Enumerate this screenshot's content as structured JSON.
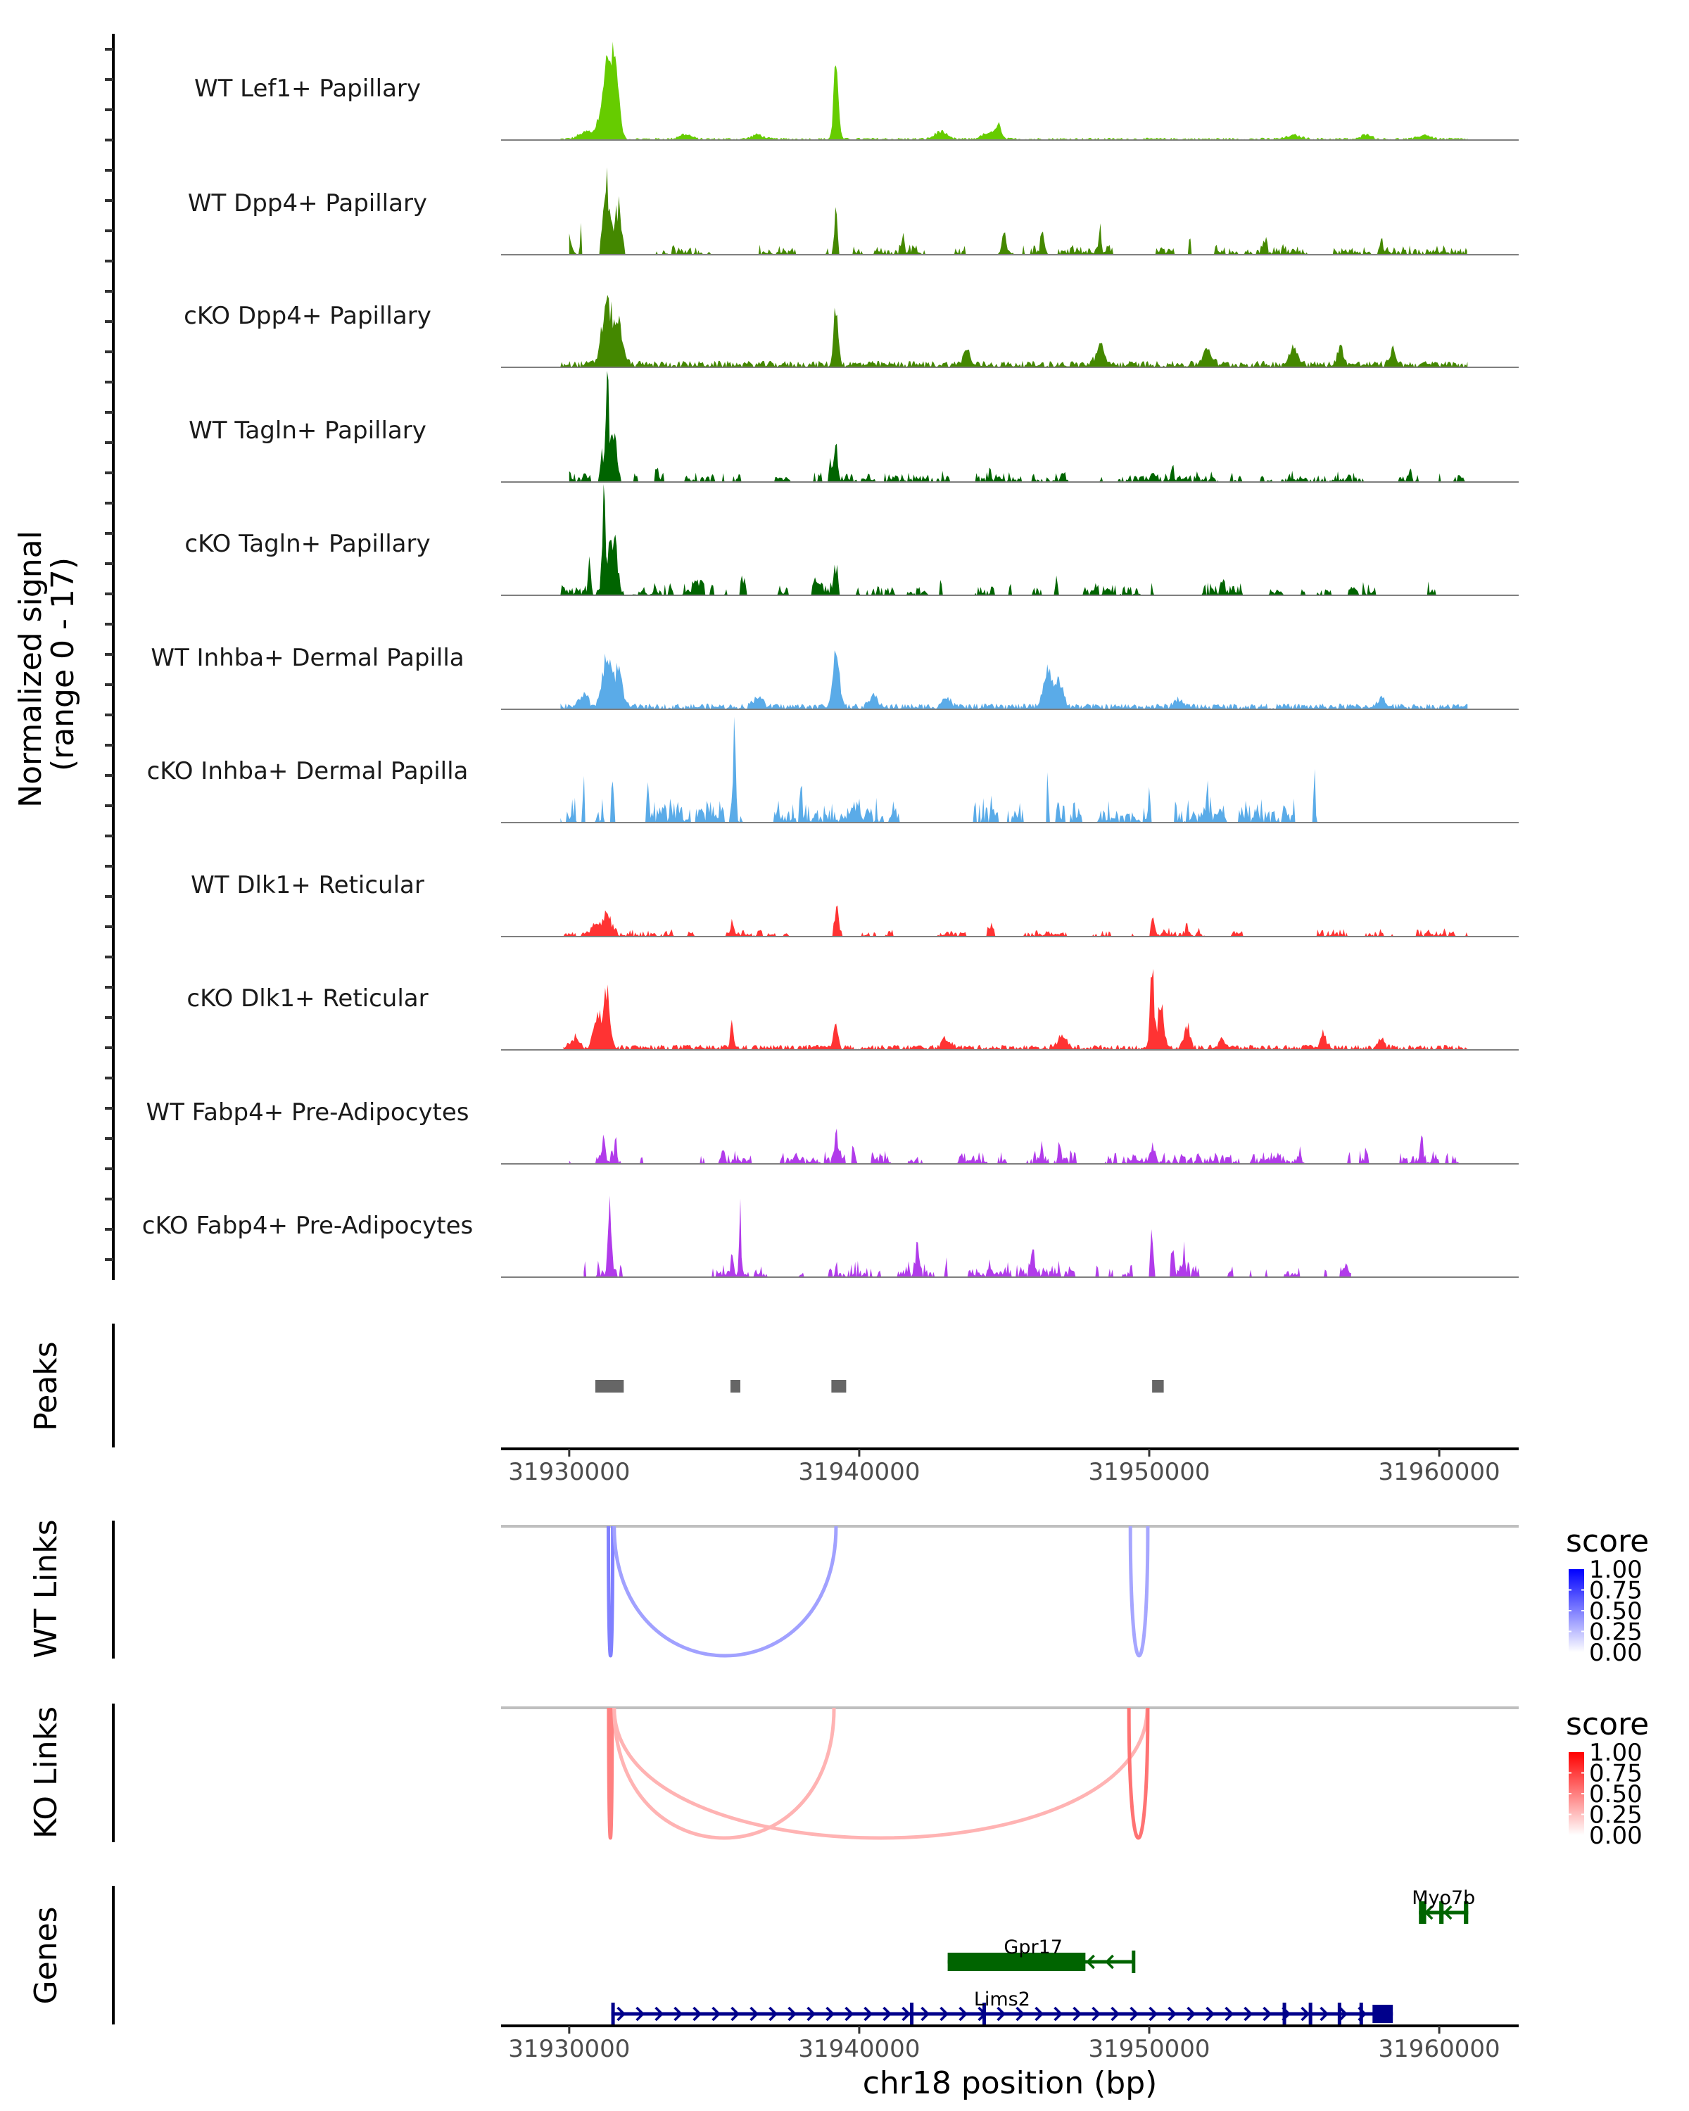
{
  "chart_data": {
    "type": "area",
    "title": "",
    "region": {
      "chrom": "chr18",
      "start": 31927650,
      "end": 31962740
    },
    "xlabel": "chr18 position (bp)",
    "ylabel": "Normalized signal\n(range 0 - 17)",
    "ylabel_lines": [
      "Normalized signal",
      "(range 0 - 17)"
    ],
    "ylim": [
      0,
      17
    ],
    "x_ticks": [
      31930000,
      31940000,
      31950000,
      31960000
    ],
    "x_tick_labels": [
      "31930000",
      "31940000",
      "31950000",
      "31960000"
    ],
    "coverage_tracks": [
      {
        "name": "WT Lef1+ Papillary",
        "color": "#66cc00",
        "style": "continuous",
        "noise": 0.35,
        "span": [
          31929700,
          31961000
        ],
        "peaks": [
          [
            31931300,
            11.5,
            380
          ],
          [
            31931600,
            9.0,
            250
          ],
          [
            31930600,
            1.2,
            500
          ],
          [
            31939200,
            12.0,
            160
          ],
          [
            31934000,
            0.8,
            400
          ],
          [
            31936500,
            0.7,
            400
          ],
          [
            31942800,
            1.2,
            400
          ],
          [
            31944800,
            2.5,
            150
          ],
          [
            31944500,
            1.0,
            500
          ],
          [
            31955000,
            0.6,
            500
          ],
          [
            31957500,
            0.9,
            300
          ],
          [
            31959500,
            0.7,
            400
          ]
        ]
      },
      {
        "name": "WT Dpp4+ Papillary",
        "color": "#448800",
        "style": "sparse",
        "noise": 0.9,
        "span": [
          31930000,
          31961000
        ],
        "peaks": [
          [
            31931300,
            13.0,
            250
          ],
          [
            31931700,
            9.5,
            200
          ],
          [
            31930400,
            5.0,
            60
          ],
          [
            31930000,
            3.0,
            80
          ],
          [
            31939200,
            9.0,
            120
          ],
          [
            31941500,
            2.8,
            100
          ],
          [
            31945000,
            3.5,
            100
          ],
          [
            31946300,
            3.0,
            100
          ],
          [
            31948300,
            3.4,
            100
          ],
          [
            31951400,
            2.4,
            100
          ],
          [
            31954000,
            2.3,
            100
          ],
          [
            31958000,
            1.6,
            100
          ]
        ]
      },
      {
        "name": "cKO Dpp4+ Papillary",
        "color": "#448800",
        "style": "continuous",
        "noise": 1.0,
        "span": [
          31929700,
          31961000
        ],
        "peaks": [
          [
            31931300,
            9.5,
            350
          ],
          [
            31931700,
            6.0,
            300
          ],
          [
            31939200,
            9.0,
            150
          ],
          [
            31943700,
            2.6,
            200
          ],
          [
            31948300,
            2.8,
            300
          ],
          [
            31952000,
            2.4,
            300
          ],
          [
            31955000,
            2.8,
            300
          ],
          [
            31956600,
            3.2,
            200
          ],
          [
            31958400,
            2.6,
            200
          ]
        ]
      },
      {
        "name": "WT Tagln+ Papillary",
        "color": "#006400",
        "style": "sparse",
        "noise": 0.9,
        "span": [
          31930000,
          31961000
        ],
        "peaks": [
          [
            31931300,
            16.8,
            120
          ],
          [
            31931500,
            8.0,
            250
          ],
          [
            31931100,
            5.0,
            100
          ],
          [
            31939200,
            5.5,
            120
          ],
          [
            31939000,
            3.6,
            100
          ],
          [
            31933000,
            2.4,
            80
          ],
          [
            31935300,
            2.1,
            80
          ],
          [
            31944500,
            2.3,
            60
          ],
          [
            31947000,
            1.8,
            80
          ],
          [
            31950800,
            2.0,
            80
          ],
          [
            31959000,
            2.0,
            80
          ],
          [
            31960000,
            1.8,
            80
          ]
        ]
      },
      {
        "name": "cKO Tagln+ Papillary",
        "color": "#006400",
        "style": "sparse",
        "noise": 1.1,
        "span": [
          31929700,
          31961000
        ],
        "peaks": [
          [
            31931200,
            16.5,
            120
          ],
          [
            31931500,
            11.0,
            250
          ],
          [
            31930700,
            4.8,
            80
          ],
          [
            31934500,
            2.6,
            300
          ],
          [
            31936000,
            3.0,
            200
          ],
          [
            31939200,
            4.8,
            150
          ],
          [
            31938500,
            2.5,
            200
          ],
          [
            31942800,
            2.4,
            100
          ],
          [
            31945200,
            2.2,
            100
          ],
          [
            31946800,
            2.8,
            120
          ],
          [
            31952500,
            2.2,
            100
          ]
        ]
      },
      {
        "name": "WT Inhba+ Dermal Papilla",
        "color": "#5aabe8",
        "style": "continuous",
        "noise": 0.9,
        "span": [
          31929700,
          31961000
        ],
        "peaks": [
          [
            31931300,
            8.5,
            300
          ],
          [
            31931700,
            6.0,
            250
          ],
          [
            31930500,
            2.0,
            300
          ],
          [
            31939200,
            10.0,
            200
          ],
          [
            31946500,
            6.0,
            300
          ],
          [
            31946900,
            3.5,
            300
          ],
          [
            31940500,
            1.6,
            300
          ],
          [
            31936500,
            1.8,
            300
          ],
          [
            31943000,
            1.4,
            300
          ],
          [
            31951000,
            1.2,
            300
          ],
          [
            31958000,
            1.2,
            300
          ]
        ]
      },
      {
        "name": "cKO Inhba+ Dermal Papilla",
        "color": "#5aabe8",
        "style": "sparse",
        "noise": 2.2,
        "span": [
          31929700,
          31956000
        ],
        "peaks": [
          [
            31935700,
            15.0,
            80
          ],
          [
            31930500,
            7.5,
            60
          ],
          [
            31931500,
            6.8,
            80
          ],
          [
            31932700,
            8.5,
            60
          ],
          [
            31938000,
            8.6,
            60
          ],
          [
            31946500,
            8.8,
            60
          ],
          [
            31952000,
            6.0,
            60
          ],
          [
            31955700,
            8.5,
            60
          ],
          [
            31944000,
            5.2,
            60
          ],
          [
            31933500,
            4.0,
            60
          ],
          [
            31940000,
            4.5,
            60
          ],
          [
            31950000,
            5.8,
            80
          ],
          [
            31959500,
            3.2,
            60
          ]
        ]
      },
      {
        "name": "WT Dlk1+ Reticular",
        "color": "#ff3333",
        "style": "sparse",
        "noise": 0.7,
        "span": [
          31929800,
          31961000
        ],
        "peaks": [
          [
            31931300,
            3.8,
            300
          ],
          [
            31930900,
            2.2,
            200
          ],
          [
            31939200,
            5.0,
            150
          ],
          [
            31935600,
            2.2,
            100
          ],
          [
            31944500,
            1.6,
            200
          ],
          [
            31950100,
            2.8,
            150
          ],
          [
            31951300,
            1.4,
            100
          ],
          [
            31942000,
            1.2,
            200
          ]
        ]
      },
      {
        "name": "cKO Dlk1+ Reticular",
        "color": "#ff3333",
        "style": "continuous",
        "noise": 0.8,
        "span": [
          31929800,
          31961000
        ],
        "peaks": [
          [
            31931300,
            8.5,
            200
          ],
          [
            31931000,
            5.0,
            300
          ],
          [
            31930200,
            1.6,
            300
          ],
          [
            31935600,
            4.3,
            100
          ],
          [
            31939200,
            3.8,
            150
          ],
          [
            31950100,
            14.0,
            120
          ],
          [
            31950400,
            7.0,
            200
          ],
          [
            31951300,
            3.6,
            200
          ],
          [
            31952500,
            1.6,
            200
          ],
          [
            31943000,
            1.5,
            300
          ],
          [
            31947000,
            1.8,
            300
          ],
          [
            31956000,
            2.2,
            200
          ],
          [
            31958000,
            1.5,
            200
          ]
        ]
      },
      {
        "name": "WT Fabp4+ Pre-Adipocytes",
        "color": "#b13bea",
        "style": "sparse",
        "noise": 1.2,
        "span": [
          31930000,
          31961000
        ],
        "peaks": [
          [
            31931200,
            4.5,
            100
          ],
          [
            31931600,
            3.3,
            80
          ],
          [
            31939200,
            5.0,
            100
          ],
          [
            31939800,
            2.6,
            80
          ],
          [
            31946300,
            3.0,
            80
          ],
          [
            31946900,
            3.6,
            80
          ],
          [
            31950100,
            2.8,
            100
          ],
          [
            31955200,
            3.0,
            80
          ],
          [
            31957500,
            3.2,
            80
          ],
          [
            31959400,
            4.8,
            80
          ],
          [
            31932500,
            2.0,
            80
          ],
          [
            31935300,
            2.0,
            80
          ]
        ]
      },
      {
        "name": "cKO Fabp4+ Pre-Adipocytes",
        "color": "#b13bea",
        "style": "sparse",
        "noise": 1.3,
        "span": [
          31930500,
          31957000
        ],
        "peaks": [
          [
            31931400,
            10.5,
            120
          ],
          [
            31935900,
            10.5,
            70
          ],
          [
            31935600,
            3.0,
            60
          ],
          [
            31939200,
            2.2,
            60
          ],
          [
            31942000,
            5.5,
            80
          ],
          [
            31943000,
            3.0,
            80
          ],
          [
            31946000,
            5.2,
            80
          ],
          [
            31950100,
            10.0,
            100
          ],
          [
            31950800,
            6.0,
            100
          ],
          [
            31951200,
            4.0,
            80
          ],
          [
            31944500,
            2.0,
            80
          ],
          [
            31948200,
            2.0,
            80
          ],
          [
            31953500,
            2.0,
            60
          ],
          [
            31956000,
            1.6,
            60
          ]
        ]
      }
    ],
    "peaks_track": {
      "label": "Peaks",
      "color": "#666666",
      "regions": [
        [
          31930900,
          31931880
        ],
        [
          31935560,
          31935900
        ],
        [
          31939040,
          31939550
        ],
        [
          31950100,
          31950500
        ]
      ]
    },
    "link_tracks": [
      {
        "label": "WT Links",
        "legend_title": "score",
        "low_color": "#ffffff",
        "high_color": "#0000ff",
        "links": [
          {
            "start": 31931350,
            "end": 31931500,
            "score": 0.45
          },
          {
            "start": 31931550,
            "end": 31939200,
            "score": 0.32
          },
          {
            "start": 31949350,
            "end": 31949950,
            "score": 0.3
          }
        ]
      },
      {
        "label": "KO Links",
        "legend_title": "score",
        "low_color": "#ffffff",
        "high_color": "#ff0000",
        "links": [
          {
            "start": 31931360,
            "end": 31931480,
            "score": 0.45
          },
          {
            "start": 31931550,
            "end": 31939130,
            "score": 0.25
          },
          {
            "start": 31931550,
            "end": 31949930,
            "score": 0.25
          },
          {
            "start": 31949300,
            "end": 31949950,
            "score": 0.5
          }
        ]
      }
    ],
    "legend_ticks": [
      "1.00",
      "0.75",
      "0.50",
      "0.25",
      "0.00"
    ],
    "genes_track": {
      "label": "Genes",
      "genes": [
        {
          "name": "Myo7b",
          "strand": "-",
          "color": "#006400",
          "row": 0,
          "start": 31959300,
          "end": 31961000,
          "exons": [
            [
              31959300,
              31959550
            ],
            [
              31960000,
              31960150
            ],
            [
              31960850,
              31961000
            ]
          ]
        },
        {
          "name": "Gpr17",
          "strand": "-",
          "color": "#006400",
          "row": 1,
          "start": 31943050,
          "end": 31949450,
          "exons": [
            [
              31943050,
              31947800
            ],
            [
              31949400,
              31949450
            ]
          ]
        },
        {
          "name": "Lims2",
          "strand": "+",
          "color": "#00008b",
          "row": 2,
          "start": 31931450,
          "end": 31958400,
          "exons": [
            [
              31931450,
              31931480
            ],
            [
              31941750,
              31941850
            ],
            [
              31944250,
              31944350
            ],
            [
              31954600,
              31954700
            ],
            [
              31955500,
              31955600
            ],
            [
              31956500,
              31956550
            ],
            [
              31957250,
              31957300
            ],
            [
              31957700,
              31958400
            ]
          ]
        }
      ]
    }
  }
}
